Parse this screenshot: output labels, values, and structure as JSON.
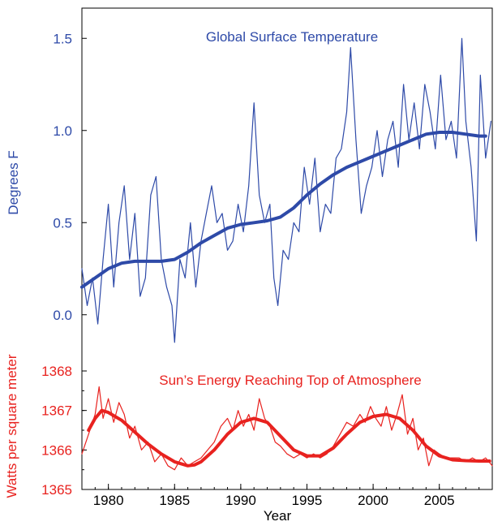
{
  "chart_data": [
    {
      "type": "line",
      "title": "Global Surface Temperature",
      "ylabel": "Degrees F",
      "xlim": [
        1978,
        2009
      ],
      "ylim": [
        -0.25,
        1.75
      ],
      "yticks": [
        "0.0",
        "0.5",
        "1.0",
        "1.5"
      ],
      "color": "#2e4aa8",
      "series": [
        {
          "kind": "monthly",
          "x": [
            1978.0,
            1978.4,
            1978.8,
            1979.2,
            1979.6,
            1980.0,
            1980.4,
            1980.8,
            1981.2,
            1981.6,
            1982.0,
            1982.4,
            1982.8,
            1983.2,
            1983.6,
            1984.0,
            1984.4,
            1984.8,
            1985.0,
            1985.4,
            1985.8,
            1986.2,
            1986.6,
            1987.0,
            1987.4,
            1987.8,
            1988.2,
            1988.6,
            1989.0,
            1989.4,
            1989.8,
            1990.2,
            1990.6,
            1991.0,
            1991.4,
            1991.8,
            1992.2,
            1992.5,
            1992.8,
            1993.2,
            1993.6,
            1994.0,
            1994.4,
            1994.8,
            1995.2,
            1995.6,
            1996.0,
            1996.4,
            1996.8,
            1997.2,
            1997.6,
            1998.0,
            1998.3,
            1998.7,
            1999.1,
            1999.5,
            1999.9,
            2000.3,
            2000.7,
            2001.1,
            2001.5,
            2001.9,
            2002.3,
            2002.7,
            2003.1,
            2003.5,
            2003.9,
            2004.3,
            2004.7,
            2005.1,
            2005.5,
            2005.9,
            2006.3,
            2006.7,
            2007.0,
            2007.4,
            2007.8,
            2008.1,
            2008.5,
            2008.9
          ],
          "y": [
            0.25,
            0.05,
            0.2,
            -0.05,
            0.3,
            0.6,
            0.15,
            0.5,
            0.7,
            0.3,
            0.55,
            0.1,
            0.2,
            0.65,
            0.75,
            0.3,
            0.15,
            0.05,
            -0.15,
            0.3,
            0.2,
            0.5,
            0.15,
            0.4,
            0.55,
            0.7,
            0.5,
            0.55,
            0.35,
            0.4,
            0.6,
            0.45,
            0.7,
            1.15,
            0.65,
            0.5,
            0.6,
            0.2,
            0.05,
            0.35,
            0.3,
            0.5,
            0.45,
            0.8,
            0.6,
            0.85,
            0.45,
            0.6,
            0.55,
            0.85,
            0.9,
            1.1,
            1.45,
            0.95,
            0.55,
            0.7,
            0.8,
            1.0,
            0.75,
            0.95,
            1.05,
            0.8,
            1.25,
            0.95,
            1.15,
            0.9,
            1.25,
            1.1,
            0.9,
            1.3,
            0.95,
            1.05,
            0.85,
            1.5,
            1.05,
            0.8,
            0.4,
            1.3,
            0.85,
            1.05
          ]
        },
        {
          "kind": "smoothed",
          "x": [
            1978.0,
            1979.0,
            1980.0,
            1981.0,
            1982.0,
            1983.0,
            1984.0,
            1985.0,
            1986.0,
            1987.0,
            1988.0,
            1989.0,
            1990.0,
            1991.0,
            1992.0,
            1993.0,
            1994.0,
            1995.0,
            1996.0,
            1997.0,
            1998.0,
            1999.0,
            2000.0,
            2001.0,
            2002.0,
            2003.0,
            2004.0,
            2005.0,
            2006.0,
            2007.0,
            2008.0,
            2008.5
          ],
          "y": [
            0.15,
            0.2,
            0.25,
            0.28,
            0.29,
            0.29,
            0.29,
            0.3,
            0.34,
            0.39,
            0.43,
            0.47,
            0.49,
            0.5,
            0.51,
            0.53,
            0.58,
            0.65,
            0.71,
            0.76,
            0.8,
            0.83,
            0.86,
            0.89,
            0.92,
            0.95,
            0.98,
            0.99,
            0.99,
            0.98,
            0.97,
            0.97
          ]
        }
      ]
    },
    {
      "type": "line",
      "title": "Sun’s Energy Reaching Top of Atmosphere",
      "ylabel": "Watts per square meter",
      "xlabel": "Year",
      "xlim": [
        1978,
        2009
      ],
      "ylim": [
        1365,
        1368
      ],
      "yticks": [
        "1365",
        "1366",
        "1367",
        "1368"
      ],
      "xticks": [
        "1980",
        "1985",
        "1990",
        "1995",
        "2000",
        "2005"
      ],
      "color": "#e8221f",
      "series": [
        {
          "kind": "daily",
          "x": [
            1978.0,
            1978.5,
            1979.0,
            1979.3,
            1979.6,
            1980.0,
            1980.4,
            1980.8,
            1981.2,
            1981.6,
            1982.0,
            1982.5,
            1983.0,
            1983.5,
            1984.0,
            1984.5,
            1985.0,
            1985.5,
            1986.0,
            1986.5,
            1987.0,
            1987.5,
            1988.0,
            1988.5,
            1989.0,
            1989.4,
            1989.8,
            1990.2,
            1990.6,
            1991.0,
            1991.4,
            1991.8,
            1992.2,
            1992.6,
            1993.0,
            1993.5,
            1994.0,
            1994.5,
            1995.0,
            1995.5,
            1996.0,
            1996.5,
            1997.0,
            1997.5,
            1998.0,
            1998.5,
            1999.0,
            1999.4,
            1999.8,
            2000.2,
            2000.6,
            2001.0,
            2001.4,
            2001.8,
            2002.2,
            2002.6,
            2003.0,
            2003.4,
            2003.8,
            2004.2,
            2004.6,
            2005.0,
            2005.5,
            2006.0,
            2006.5,
            2007.0,
            2007.5,
            2008.0,
            2008.5,
            2009.0
          ],
          "y": [
            1365.9,
            1366.4,
            1366.9,
            1367.6,
            1366.8,
            1367.3,
            1366.7,
            1367.2,
            1366.9,
            1366.3,
            1366.6,
            1366.0,
            1366.2,
            1365.7,
            1365.9,
            1365.6,
            1365.5,
            1365.8,
            1365.6,
            1365.7,
            1365.8,
            1366.0,
            1366.2,
            1366.6,
            1366.8,
            1366.5,
            1367.0,
            1366.6,
            1366.9,
            1366.5,
            1367.3,
            1366.8,
            1366.6,
            1366.2,
            1366.1,
            1365.9,
            1365.8,
            1365.9,
            1365.8,
            1365.9,
            1365.8,
            1365.9,
            1366.1,
            1366.4,
            1366.7,
            1366.6,
            1366.9,
            1366.7,
            1367.1,
            1366.8,
            1366.6,
            1367.1,
            1366.5,
            1366.9,
            1367.4,
            1366.4,
            1366.8,
            1366.0,
            1366.3,
            1365.6,
            1366.0,
            1365.9,
            1365.8,
            1365.8,
            1365.8,
            1365.7,
            1365.8,
            1365.7,
            1365.8,
            1365.6
          ]
        },
        {
          "kind": "smoothed",
          "x": [
            1978.5,
            1979.0,
            1979.5,
            1980.0,
            1980.5,
            1981.0,
            1982.0,
            1983.0,
            1984.0,
            1985.0,
            1986.0,
            1986.5,
            1987.0,
            1988.0,
            1989.0,
            1990.0,
            1991.0,
            1992.0,
            1993.0,
            1994.0,
            1995.0,
            1996.0,
            1997.0,
            1998.0,
            1999.0,
            2000.0,
            2001.0,
            2002.0,
            2003.0,
            2004.0,
            2005.0,
            2006.0,
            2007.0,
            2008.0,
            2008.8
          ],
          "y": [
            1366.5,
            1366.8,
            1367.0,
            1366.95,
            1366.85,
            1366.75,
            1366.45,
            1366.15,
            1365.9,
            1365.7,
            1365.6,
            1365.62,
            1365.7,
            1366.0,
            1366.4,
            1366.7,
            1366.8,
            1366.7,
            1366.35,
            1366.0,
            1365.85,
            1365.85,
            1366.05,
            1366.4,
            1366.7,
            1366.85,
            1366.9,
            1366.8,
            1366.5,
            1366.1,
            1365.85,
            1365.75,
            1365.73,
            1365.72,
            1365.72
          ]
        }
      ]
    }
  ]
}
